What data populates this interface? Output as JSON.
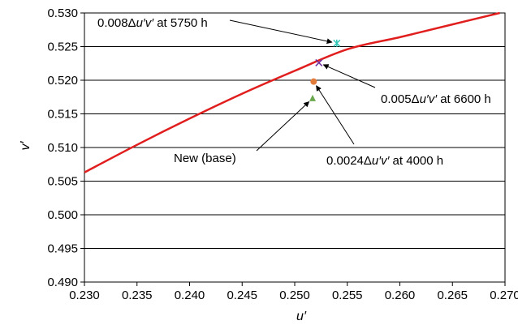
{
  "chart_data": {
    "type": "scatter",
    "title": "",
    "xlabel": "u′",
    "ylabel": "v′",
    "xlim": [
      0.23,
      0.27
    ],
    "ylim": [
      0.49,
      0.53
    ],
    "x_ticks": [
      "0.230",
      "0.235",
      "0.240",
      "0.245",
      "0.250",
      "0.255",
      "0.260",
      "0.265",
      "0.270"
    ],
    "y_ticks": [
      "0.490",
      "0.495",
      "0.500",
      "0.505",
      "0.510",
      "0.515",
      "0.520",
      "0.525",
      "0.530"
    ],
    "grid": "horizontal",
    "curve": {
      "color": "#e11e1e",
      "points": [
        [
          0.23,
          0.5063
        ],
        [
          0.235,
          0.5104
        ],
        [
          0.24,
          0.5143
        ],
        [
          0.245,
          0.518
        ],
        [
          0.25,
          0.5214
        ],
        [
          0.255,
          0.5246
        ],
        [
          0.26,
          0.5264
        ],
        [
          0.265,
          0.5283
        ],
        [
          0.2695,
          0.53
        ]
      ]
    },
    "series": [
      {
        "label": "New (base)",
        "x": 0.2517,
        "y": 0.5173,
        "marker": "triangle",
        "color": "#6aa84f"
      },
      {
        "label": "0.0024Δu′v′ at 4000 h",
        "x": 0.2518,
        "y": 0.5198,
        "marker": "circle",
        "color": "#e07b39"
      },
      {
        "label": "0.005Δu′v′ at 6600 h",
        "x": 0.2523,
        "y": 0.5226,
        "marker": "x",
        "color": "#7030a0"
      },
      {
        "label": "0.008Δu′v′ at 5750 h",
        "x": 0.254,
        "y": 0.5255,
        "marker": "star",
        "color": "#2ec4b6"
      }
    ],
    "annotations": [
      {
        "parts": [
          [
            "0.008",
            false
          ],
          [
            "Δ",
            false
          ],
          [
            "u′v′",
            true
          ],
          [
            " at 5750 h",
            false
          ]
        ]
      },
      {
        "parts": [
          [
            "0.005",
            false
          ],
          [
            "Δ",
            false
          ],
          [
            "u′v′",
            true
          ],
          [
            " at 6600 h",
            false
          ]
        ]
      },
      {
        "parts": [
          [
            "New (base)",
            false
          ]
        ]
      },
      {
        "parts": [
          [
            "0.0024",
            false
          ],
          [
            "Δ",
            false
          ],
          [
            "u′v′",
            true
          ],
          [
            " at 4000 h",
            false
          ]
        ]
      }
    ]
  }
}
